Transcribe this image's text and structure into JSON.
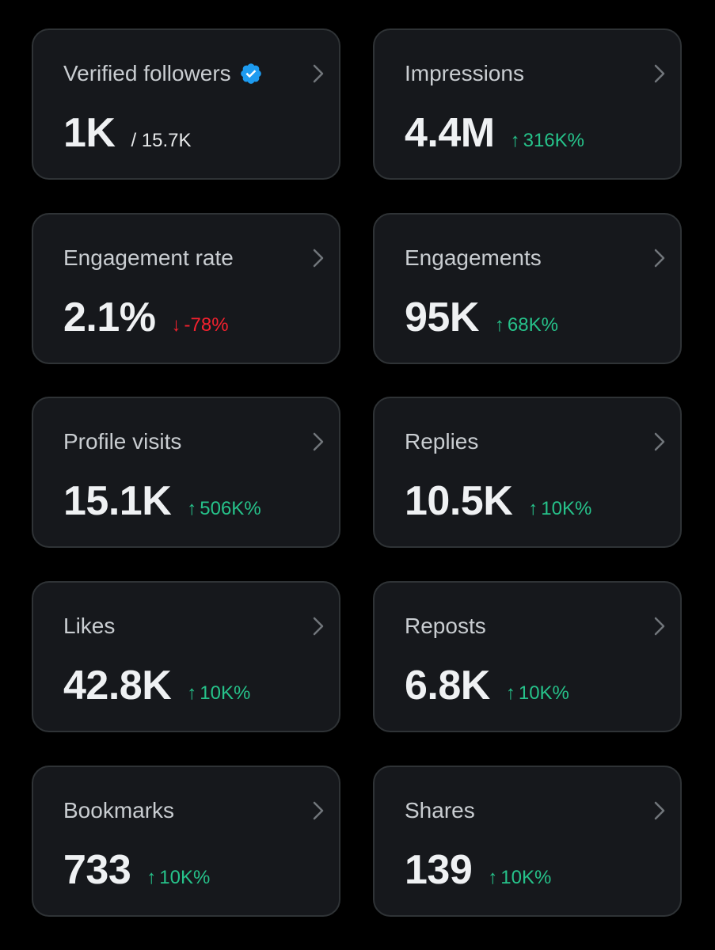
{
  "colors": {
    "background": "#000000",
    "card_background": "#16181c",
    "card_border": "#2f3336",
    "positive": "#26c28a",
    "negative": "#f4212e",
    "verified_badge": "#1d9bf0"
  },
  "cards": [
    {
      "title": "Verified followers",
      "value": "1K",
      "sub": "/ 15.7K",
      "verified_icon": "verified-badge-icon",
      "chevron_icon": "chevron-right-icon"
    },
    {
      "title": "Impressions",
      "value": "4.4M",
      "change": "316K%",
      "arrow": "↑",
      "direction": "up",
      "chevron_icon": "chevron-right-icon"
    },
    {
      "title": "Engagement rate",
      "value": "2.1%",
      "change": "-78%",
      "arrow": "↓",
      "direction": "down",
      "chevron_icon": "chevron-right-icon"
    },
    {
      "title": "Engagements",
      "value": "95K",
      "change": "68K%",
      "arrow": "↑",
      "direction": "up",
      "chevron_icon": "chevron-right-icon"
    },
    {
      "title": "Profile visits",
      "value": "15.1K",
      "change": "506K%",
      "arrow": "↑",
      "direction": "up",
      "chevron_icon": "chevron-right-icon"
    },
    {
      "title": "Replies",
      "value": "10.5K",
      "change": "10K%",
      "arrow": "↑",
      "direction": "up",
      "chevron_icon": "chevron-right-icon"
    },
    {
      "title": "Likes",
      "value": "42.8K",
      "change": "10K%",
      "arrow": "↑",
      "direction": "up",
      "chevron_icon": "chevron-right-icon"
    },
    {
      "title": "Reposts",
      "value": "6.8K",
      "change": "10K%",
      "arrow": "↑",
      "direction": "up",
      "chevron_icon": "chevron-right-icon"
    },
    {
      "title": "Bookmarks",
      "value": "733",
      "change": "10K%",
      "arrow": "↑",
      "direction": "up",
      "chevron_icon": "chevron-right-icon"
    },
    {
      "title": "Shares",
      "value": "139",
      "change": "10K%",
      "arrow": "↑",
      "direction": "up",
      "chevron_icon": "chevron-right-icon"
    }
  ]
}
